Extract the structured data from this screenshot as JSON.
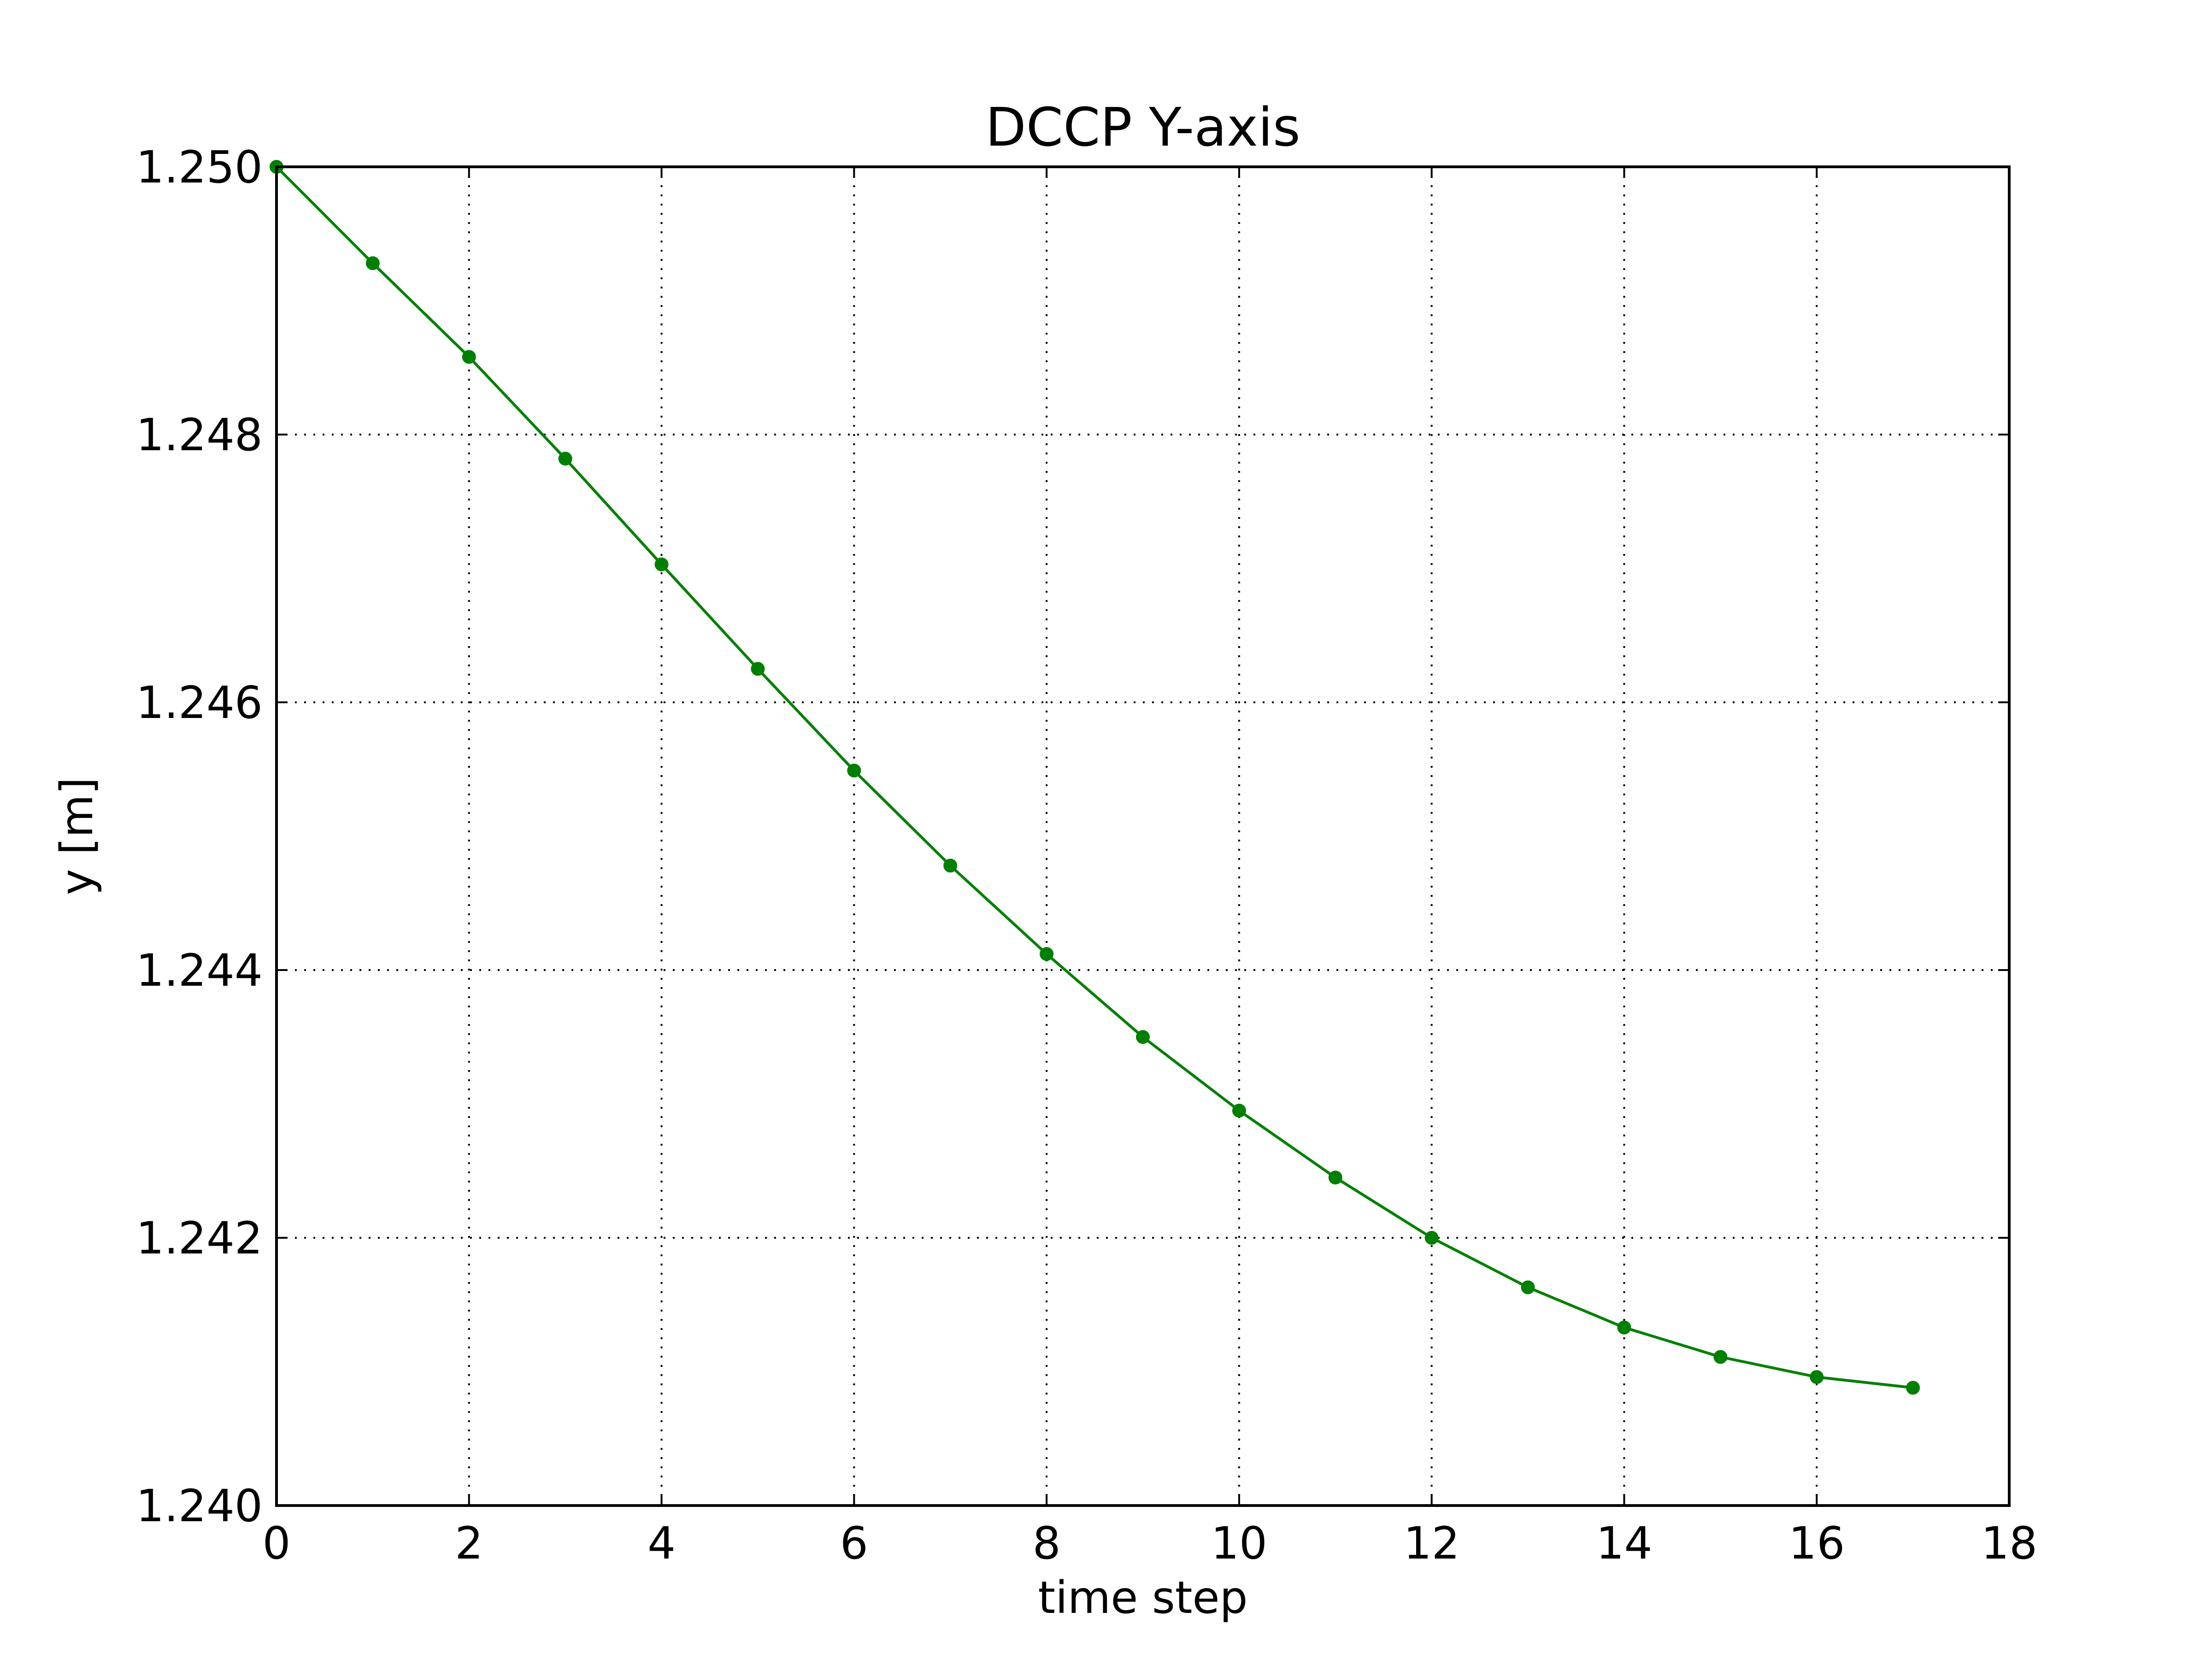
{
  "chart_data": {
    "type": "line",
    "title": "DCCP Y-axis",
    "xlabel": "time step",
    "ylabel": "y [m]",
    "xlim": [
      0,
      18
    ],
    "ylim": [
      1.24,
      1.25
    ],
    "xticks": [
      0,
      2,
      4,
      6,
      8,
      10,
      12,
      14,
      16,
      18
    ],
    "xtick_labels": [
      "0",
      "2",
      "4",
      "6",
      "8",
      "10",
      "12",
      "14",
      "16",
      "18"
    ],
    "yticks": [
      1.24,
      1.242,
      1.244,
      1.246,
      1.248,
      1.25
    ],
    "ytick_labels": [
      "1.240",
      "1.242",
      "1.244",
      "1.246",
      "1.248",
      "1.250"
    ],
    "grid": true,
    "series": [
      {
        "color": "#008000",
        "marker": "circle",
        "x": [
          0,
          1,
          2,
          3,
          4,
          5,
          6,
          7,
          8,
          9,
          10,
          11,
          12,
          13,
          14,
          15,
          16,
          17
        ],
        "y": [
          1.25,
          1.24928,
          1.24858,
          1.24782,
          1.24703,
          1.24625,
          1.24549,
          1.24478,
          1.24412,
          1.2435,
          1.24295,
          1.24245,
          1.242,
          1.24163,
          1.24133,
          1.24111,
          1.24096,
          1.24088
        ]
      }
    ]
  }
}
